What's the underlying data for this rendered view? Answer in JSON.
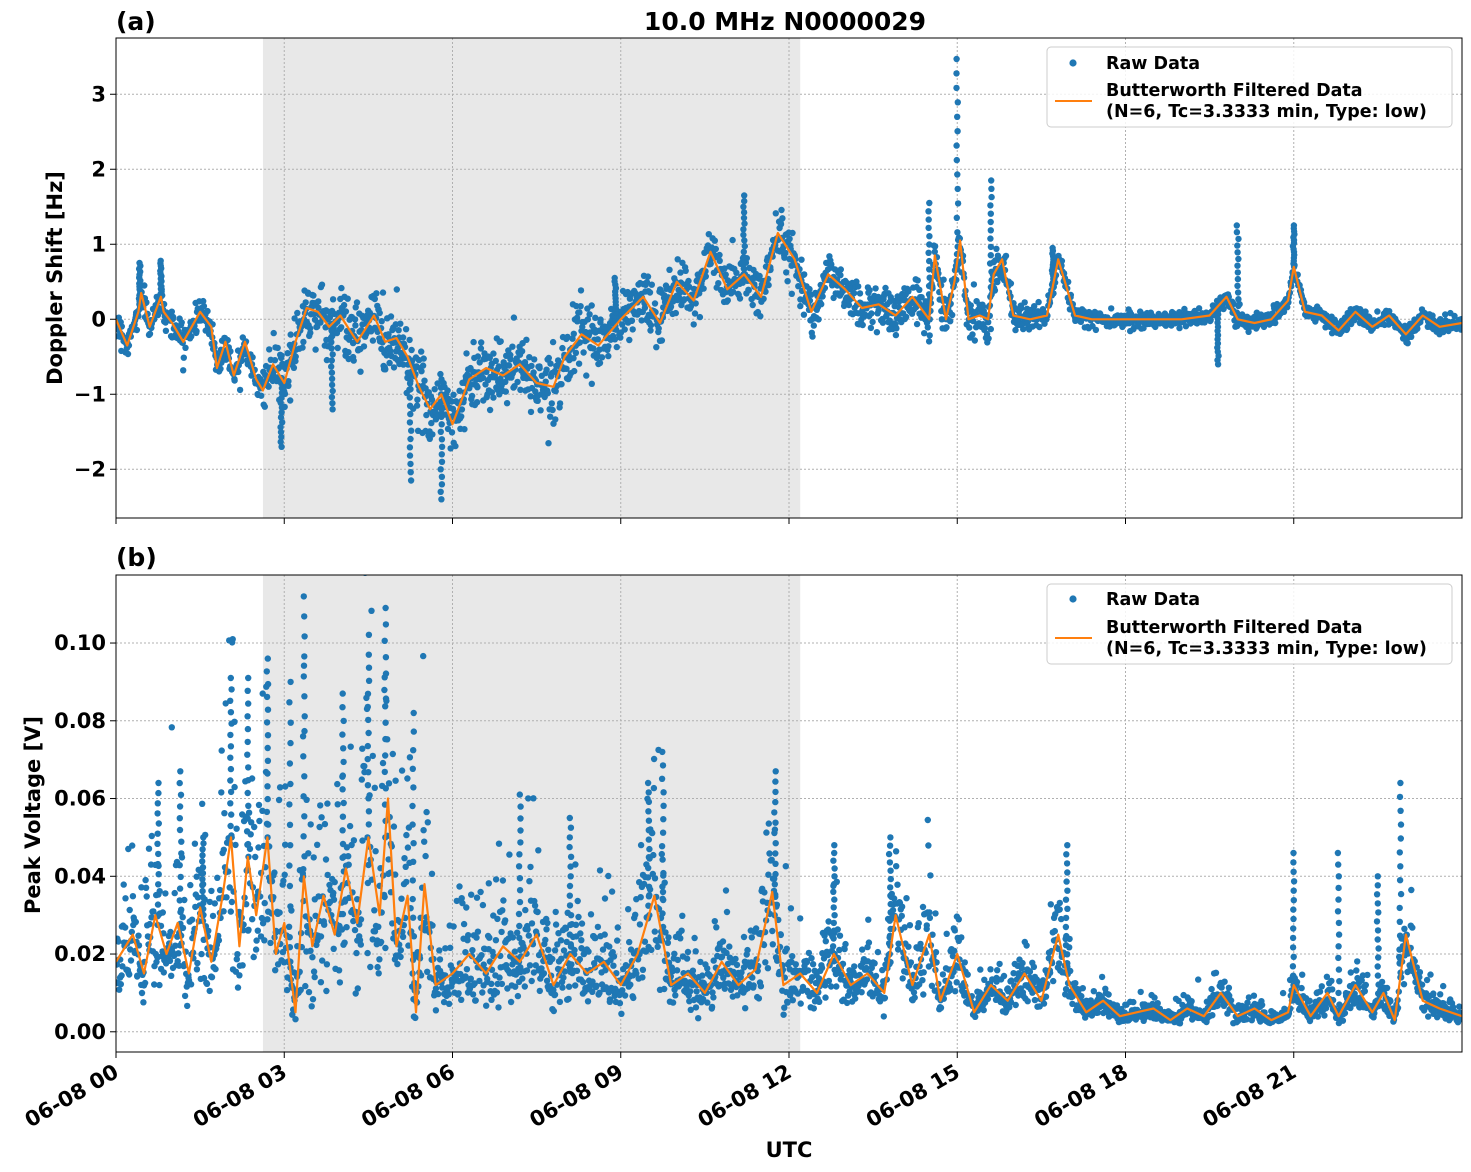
{
  "figure_title": "10.0 MHz N0000029",
  "xlabel": "UTC",
  "x_ticks": [
    "06-08 00",
    "06-08 03",
    "06-08 06",
    "06-08 09",
    "06-08 12",
    "06-08 15",
    "06-08 18",
    "06-08 21"
  ],
  "legend": {
    "raw": "Raw Data",
    "filtered_line1": "Butterworth Filtered Data",
    "filtered_line2": "(N=6, Tc=3.3333 min, Type: low)"
  },
  "colors": {
    "raw": "#1f77b4",
    "filtered": "#ff7f0e",
    "shade": "#e8e8e8",
    "grid": "#b0b0b0"
  },
  "chart_data": [
    {
      "type": "scatter",
      "panel_label": "(a)",
      "ylabel": "Doppler Shift [Hz]",
      "xlim_hours": [
        0,
        24
      ],
      "ylim": [
        -2.65,
        3.75
      ],
      "y_ticks": [
        -2,
        -1,
        0,
        1,
        2,
        3
      ],
      "y_tick_labels": [
        "−2",
        "−1",
        "0",
        "1",
        "2",
        "3"
      ],
      "shaded_interval_hours": [
        2.62,
        12.2
      ],
      "grid": true,
      "legend_position": "upper right",
      "series": [
        {
          "name": "Raw Data",
          "style": "points",
          "spread_keyframes": [
            [
              0,
              0.15
            ],
            [
              2.6,
              0.2
            ],
            [
              3.0,
              0.35
            ],
            [
              5.5,
              0.45
            ],
            [
              8,
              0.35
            ],
            [
              12.2,
              0.3
            ],
            [
              13.5,
              0.25
            ],
            [
              15.5,
              0.25
            ],
            [
              17,
              0.1
            ],
            [
              24,
              0.1
            ]
          ],
          "spikes": [
            [
              0.42,
              0.75
            ],
            [
              0.8,
              0.78
            ],
            [
              2.95,
              -1.7
            ],
            [
              3.85,
              -1.2
            ],
            [
              5.25,
              -2.15
            ],
            [
              5.8,
              -2.4
            ],
            [
              8.9,
              0.55
            ],
            [
              11.2,
              1.65
            ],
            [
              14.5,
              1.55
            ],
            [
              15.0,
              3.47
            ],
            [
              15.6,
              1.85
            ],
            [
              16.7,
              0.95
            ],
            [
              20.0,
              1.25
            ],
            [
              21.0,
              1.25
            ],
            [
              19.65,
              -0.6
            ]
          ]
        },
        {
          "name": "Butterworth Filtered Data (N=6, Tc=3.3333 min, Type: low)",
          "style": "line",
          "x_hours": [
            0,
            0.2,
            0.4,
            0.45,
            0.6,
            0.8,
            0.85,
            1.0,
            1.2,
            1.5,
            1.7,
            1.8,
            1.95,
            2.1,
            2.3,
            2.5,
            2.62,
            2.8,
            3.0,
            3.2,
            3.4,
            3.6,
            3.8,
            4.0,
            4.3,
            4.6,
            4.8,
            5.0,
            5.2,
            5.4,
            5.6,
            5.8,
            6.0,
            6.3,
            6.6,
            6.9,
            7.2,
            7.5,
            7.8,
            8.0,
            8.3,
            8.6,
            9.0,
            9.4,
            9.7,
            10.0,
            10.3,
            10.6,
            10.9,
            11.2,
            11.5,
            11.8,
            12.1,
            12.4,
            12.7,
            13.0,
            13.3,
            13.6,
            13.9,
            14.2,
            14.5,
            14.6,
            14.8,
            14.95,
            15.05,
            15.2,
            15.4,
            15.55,
            15.65,
            15.8,
            16.0,
            16.3,
            16.6,
            16.8,
            17.1,
            17.4,
            17.7,
            18.0,
            18.5,
            19.0,
            19.5,
            19.8,
            20.0,
            20.3,
            20.6,
            20.9,
            21.0,
            21.2,
            21.5,
            21.8,
            22.1,
            22.4,
            22.7,
            23.0,
            23.3,
            23.6,
            24.0
          ],
          "y": [
            0.0,
            -0.35,
            0.1,
            0.35,
            -0.1,
            0.3,
            0.1,
            -0.05,
            -0.3,
            0.1,
            -0.1,
            -0.65,
            -0.3,
            -0.75,
            -0.3,
            -0.8,
            -0.95,
            -0.6,
            -0.85,
            -0.3,
            0.15,
            0.1,
            -0.1,
            0.05,
            -0.3,
            0.05,
            -0.3,
            -0.25,
            -0.5,
            -0.9,
            -1.2,
            -1.0,
            -1.4,
            -0.8,
            -0.65,
            -0.75,
            -0.6,
            -0.85,
            -0.9,
            -0.5,
            -0.2,
            -0.35,
            0.0,
            0.3,
            -0.05,
            0.5,
            0.25,
            0.9,
            0.4,
            0.6,
            0.3,
            1.15,
            0.8,
            0.1,
            0.6,
            0.4,
            0.15,
            0.2,
            0.05,
            0.3,
            0.0,
            0.85,
            0.0,
            0.5,
            1.05,
            0.0,
            0.05,
            0.0,
            0.6,
            0.8,
            0.05,
            0.0,
            0.05,
            0.8,
            0.05,
            0.0,
            0.0,
            0.0,
            0.0,
            0.0,
            0.05,
            0.3,
            0.0,
            -0.05,
            0.0,
            0.25,
            0.7,
            0.1,
            0.05,
            -0.15,
            0.1,
            -0.1,
            0.05,
            -0.2,
            0.05,
            -0.1,
            -0.05
          ]
        }
      ]
    },
    {
      "type": "scatter",
      "panel_label": "(b)",
      "ylabel": "Peak Voltage [V]",
      "xlim_hours": [
        0,
        24
      ],
      "ylim": [
        -0.0052,
        0.1175
      ],
      "y_ticks": [
        0.0,
        0.02,
        0.04,
        0.06,
        0.08,
        0.1
      ],
      "y_tick_labels": [
        "0.00",
        "0.02",
        "0.04",
        "0.06",
        "0.08",
        "0.10"
      ],
      "shaded_interval_hours": [
        2.62,
        12.2
      ],
      "grid": true,
      "legend_position": "upper right",
      "series": [
        {
          "name": "Raw Data",
          "style": "points",
          "spread_keyframes": [
            [
              0,
              0.8
            ],
            [
              3,
              1.0
            ],
            [
              5.5,
              0.9
            ],
            [
              9,
              0.8
            ],
            [
              13,
              0.7
            ],
            [
              17,
              0.6
            ],
            [
              24,
              0.6
            ]
          ],
          "spikes": [
            [
              0.75,
              0.064
            ],
            [
              1.15,
              0.067
            ],
            [
              1.55,
              0.05
            ],
            [
              2.05,
              0.091
            ],
            [
              2.35,
              0.091
            ],
            [
              2.7,
              0.096
            ],
            [
              3.1,
              0.09
            ],
            [
              3.35,
              0.112
            ],
            [
              4.05,
              0.087
            ],
            [
              4.5,
              0.097
            ],
            [
              4.8,
              0.109
            ],
            [
              5.3,
              0.082
            ],
            [
              7.2,
              0.061
            ],
            [
              8.1,
              0.055
            ],
            [
              9.5,
              0.064
            ],
            [
              9.75,
              0.072
            ],
            [
              11.75,
              0.067
            ],
            [
              12.8,
              0.048
            ],
            [
              13.8,
              0.05
            ],
            [
              16.95,
              0.048
            ],
            [
              21.0,
              0.046
            ],
            [
              21.8,
              0.046
            ],
            [
              22.5,
              0.04
            ],
            [
              22.9,
              0.064
            ]
          ]
        },
        {
          "name": "Butterworth Filtered Data (N=6, Tc=3.3333 min, Type: low)",
          "style": "line",
          "x_hours": [
            0,
            0.3,
            0.5,
            0.7,
            0.9,
            1.1,
            1.3,
            1.5,
            1.7,
            1.9,
            2.05,
            2.2,
            2.35,
            2.5,
            2.7,
            2.85,
            3.0,
            3.2,
            3.35,
            3.5,
            3.7,
            3.9,
            4.1,
            4.3,
            4.5,
            4.7,
            4.85,
            5.0,
            5.2,
            5.35,
            5.5,
            5.7,
            6.0,
            6.3,
            6.6,
            6.9,
            7.2,
            7.5,
            7.8,
            8.1,
            8.4,
            8.7,
            9.0,
            9.3,
            9.6,
            9.9,
            10.2,
            10.5,
            10.8,
            11.1,
            11.4,
            11.7,
            11.9,
            12.2,
            12.5,
            12.8,
            13.1,
            13.4,
            13.7,
            13.9,
            14.2,
            14.5,
            14.7,
            15.0,
            15.3,
            15.6,
            15.9,
            16.2,
            16.5,
            16.8,
            17.0,
            17.3,
            17.6,
            17.9,
            18.2,
            18.5,
            18.8,
            19.1,
            19.4,
            19.7,
            20.0,
            20.3,
            20.6,
            20.9,
            21.0,
            21.3,
            21.6,
            21.8,
            22.1,
            22.4,
            22.6,
            22.8,
            23.0,
            23.3,
            23.6,
            24.0
          ],
          "y": [
            0.018,
            0.025,
            0.015,
            0.03,
            0.02,
            0.028,
            0.015,
            0.032,
            0.018,
            0.035,
            0.05,
            0.022,
            0.045,
            0.03,
            0.05,
            0.02,
            0.028,
            0.005,
            0.04,
            0.022,
            0.035,
            0.025,
            0.042,
            0.028,
            0.05,
            0.03,
            0.06,
            0.022,
            0.035,
            0.005,
            0.038,
            0.012,
            0.015,
            0.02,
            0.015,
            0.022,
            0.018,
            0.025,
            0.012,
            0.02,
            0.015,
            0.018,
            0.012,
            0.02,
            0.035,
            0.012,
            0.015,
            0.01,
            0.018,
            0.012,
            0.016,
            0.036,
            0.012,
            0.015,
            0.01,
            0.02,
            0.012,
            0.015,
            0.01,
            0.03,
            0.012,
            0.025,
            0.008,
            0.02,
            0.005,
            0.012,
            0.008,
            0.015,
            0.008,
            0.025,
            0.012,
            0.005,
            0.008,
            0.004,
            0.005,
            0.006,
            0.003,
            0.006,
            0.004,
            0.01,
            0.004,
            0.006,
            0.003,
            0.005,
            0.012,
            0.004,
            0.01,
            0.004,
            0.012,
            0.005,
            0.01,
            0.003,
            0.025,
            0.008,
            0.006,
            0.004
          ]
        }
      ]
    }
  ]
}
